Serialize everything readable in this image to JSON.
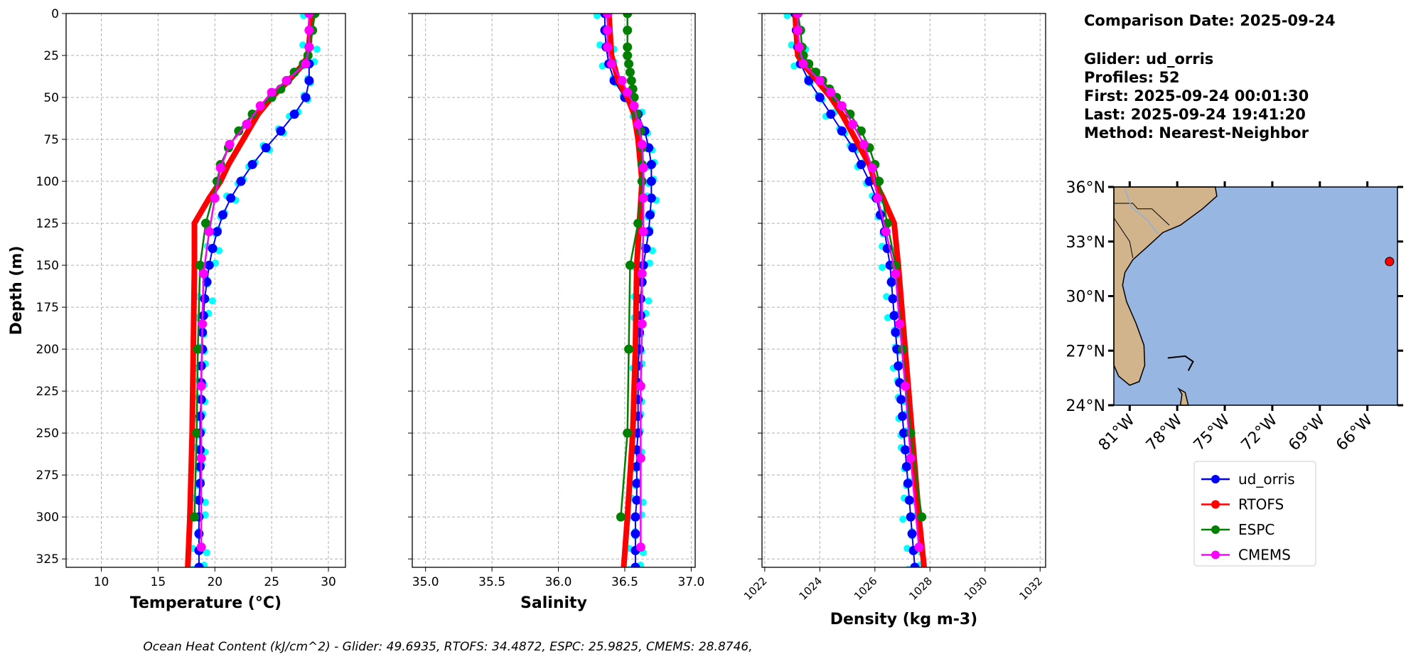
{
  "info": {
    "comparison_date": "Comparison Date: 2025-09-24",
    "glider": "Glider: ud_orris",
    "profiles": "Profiles: 52",
    "first": "First: 2025-09-24 00:01:30",
    "last": "Last: 2025-09-24 19:41:20",
    "method": "Method: Nearest-Neighbor"
  },
  "footer": "Ocean Heat Content (kJ/cm^2) - Glider: 49.6935,  RTOFS: 34.4872,  ESPC: 25.9825,  CMEMS: 28.8746,",
  "colors": {
    "ud_orris": "#0000ff",
    "glider_raw": "#00ffff",
    "RTOFS": "#ff0000",
    "ESPC": "#008000",
    "CMEMS": "#ff00ff",
    "land": "#d2b48c",
    "ocean": "#97b6e1"
  },
  "legend": [
    "ud_orris",
    "RTOFS",
    "ESPC",
    "CMEMS"
  ],
  "chart_data": [
    {
      "type": "line",
      "id": "temperature",
      "xlabel": "Temperature (°C)",
      "ylabel": "Depth (m)",
      "xlim": [
        6.9,
        31.5
      ],
      "ylim": [
        330,
        0
      ],
      "grid": true,
      "xticks": [
        "10",
        "15",
        "20",
        "25",
        "30"
      ],
      "yticks": [
        "0",
        "25",
        "50",
        "75",
        "100",
        "125",
        "150",
        "175",
        "200",
        "225",
        "250",
        "275",
        "300",
        "325"
      ],
      "series": [
        {
          "name": "ud_orris",
          "depth": [
            0,
            10,
            20,
            30,
            40,
            50,
            60,
            70,
            80,
            90,
            100,
            110,
            120,
            130,
            140,
            150,
            160,
            170,
            180,
            190,
            200,
            210,
            220,
            230,
            240,
            250,
            260,
            270,
            280,
            290,
            300,
            310,
            320,
            330
          ],
          "values": [
            28.5,
            28.4,
            28.3,
            28.3,
            28.3,
            28.0,
            27.0,
            25.8,
            24.5,
            23.3,
            22.3,
            21.4,
            20.7,
            20.2,
            19.8,
            19.5,
            19.3,
            19.1,
            19.0,
            18.9,
            18.9,
            18.8,
            18.8,
            18.8,
            18.7,
            18.7,
            18.7,
            18.7,
            18.7,
            18.6,
            18.6,
            18.6,
            18.6,
            18.6
          ]
        },
        {
          "name": "RTOFS",
          "depth": [
            0,
            10,
            25,
            30,
            40,
            50,
            60,
            75,
            90,
            100,
            110,
            125,
            150,
            200,
            250,
            300,
            332
          ],
          "values": [
            28.5,
            28.4,
            28.2,
            27.8,
            26.5,
            25.0,
            23.8,
            22.5,
            21.2,
            20.5,
            19.5,
            18.2,
            18.2,
            18.1,
            18.0,
            17.8,
            17.6
          ]
        },
        {
          "name": "ESPC",
          "depth": [
            0,
            10,
            20,
            25,
            30,
            35,
            40,
            45,
            50,
            60,
            70,
            80,
            90,
            100,
            125,
            150,
            200,
            250,
            300
          ],
          "values": [
            28.8,
            28.6,
            28.3,
            28.2,
            27.8,
            27.0,
            26.4,
            25.8,
            25.0,
            23.3,
            22.1,
            21.2,
            20.5,
            20.2,
            19.2,
            18.7,
            18.5,
            18.4,
            18.2
          ]
        },
        {
          "name": "CMEMS",
          "depth": [
            0,
            10,
            20,
            30,
            40,
            47,
            55,
            66,
            78,
            92,
            110,
            130,
            155,
            185,
            222,
            265,
            318
          ],
          "values": [
            28.3,
            28.3,
            28.3,
            28.0,
            26.3,
            25.0,
            24.0,
            22.8,
            21.3,
            20.5,
            20.0,
            19.5,
            19.0,
            18.9,
            18.8,
            18.8,
            18.8
          ]
        }
      ]
    },
    {
      "type": "line",
      "id": "salinity",
      "xlabel": "Salinity",
      "ylabel": "",
      "xlim": [
        34.9,
        37.03
      ],
      "ylim": [
        330,
        0
      ],
      "grid": true,
      "xticks": [
        "35.0",
        "35.5",
        "36.0",
        "36.5",
        "37.0"
      ],
      "series": [
        {
          "name": "ud_orris",
          "depth": [
            0,
            10,
            20,
            30,
            40,
            50,
            60,
            70,
            80,
            90,
            100,
            110,
            120,
            130,
            140,
            150,
            160,
            170,
            180,
            190,
            200,
            210,
            220,
            230,
            240,
            250,
            260,
            270,
            280,
            290,
            300,
            310,
            320,
            330
          ],
          "values": [
            36.35,
            36.35,
            36.36,
            36.38,
            36.42,
            36.5,
            36.6,
            36.65,
            36.68,
            36.7,
            36.7,
            36.7,
            36.69,
            36.68,
            36.66,
            36.64,
            36.63,
            36.62,
            36.62,
            36.61,
            36.61,
            36.6,
            36.6,
            36.6,
            36.6,
            36.6,
            36.59,
            36.59,
            36.59,
            36.59,
            36.58,
            36.58,
            36.58,
            36.58
          ]
        },
        {
          "name": "RTOFS",
          "depth": [
            0,
            25,
            40,
            50,
            60,
            75,
            100,
            125,
            150,
            200,
            250,
            300,
            332
          ],
          "values": [
            36.38,
            36.4,
            36.45,
            36.52,
            36.57,
            36.6,
            36.63,
            36.61,
            36.59,
            36.58,
            36.56,
            36.52,
            36.49
          ]
        },
        {
          "name": "ESPC",
          "depth": [
            0,
            10,
            20,
            25,
            30,
            35,
            40,
            45,
            50,
            60,
            70,
            80,
            90,
            100,
            125,
            150,
            200,
            250,
            300
          ],
          "values": [
            36.52,
            36.52,
            36.52,
            36.52,
            36.53,
            36.54,
            36.55,
            36.56,
            36.57,
            36.59,
            36.62,
            36.63,
            36.63,
            36.63,
            36.6,
            36.54,
            36.53,
            36.52,
            36.47
          ]
        },
        {
          "name": "CMEMS",
          "depth": [
            0,
            10,
            20,
            30,
            40,
            47,
            55,
            66,
            78,
            92,
            110,
            130,
            155,
            185,
            222,
            265,
            318
          ],
          "values": [
            36.37,
            36.37,
            36.37,
            36.4,
            36.48,
            36.52,
            36.57,
            36.6,
            36.63,
            36.64,
            36.64,
            36.64,
            36.63,
            36.63,
            36.62,
            36.62,
            36.62
          ]
        }
      ]
    },
    {
      "type": "line",
      "id": "density",
      "xlabel": "Density (kg m-3)",
      "ylabel": "",
      "xlim": [
        1021.9,
        1032.2
      ],
      "ylim": [
        330,
        0
      ],
      "grid": true,
      "xticks": [
        "1022",
        "1024",
        "1026",
        "1028",
        "1030",
        "1032"
      ],
      "series": [
        {
          "name": "ud_orris",
          "depth": [
            0,
            10,
            20,
            30,
            40,
            50,
            60,
            70,
            80,
            90,
            100,
            110,
            120,
            130,
            140,
            150,
            160,
            170,
            180,
            190,
            200,
            210,
            220,
            230,
            240,
            250,
            260,
            270,
            280,
            290,
            300,
            310,
            320,
            330
          ],
          "values": [
            1023.1,
            1023.15,
            1023.2,
            1023.3,
            1023.6,
            1024.0,
            1024.4,
            1024.8,
            1025.2,
            1025.5,
            1025.8,
            1026.05,
            1026.2,
            1026.35,
            1026.45,
            1026.55,
            1026.6,
            1026.65,
            1026.7,
            1026.75,
            1026.8,
            1026.85,
            1026.9,
            1026.95,
            1027.0,
            1027.05,
            1027.1,
            1027.15,
            1027.2,
            1027.25,
            1027.3,
            1027.35,
            1027.4,
            1027.45
          ]
        },
        {
          "name": "RTOFS",
          "depth": [
            0,
            25,
            30,
            40,
            50,
            60,
            75,
            90,
            100,
            110,
            125,
            150,
            200,
            250,
            300,
            332
          ],
          "values": [
            1023.1,
            1023.2,
            1023.4,
            1023.9,
            1024.4,
            1024.8,
            1025.3,
            1025.8,
            1026.0,
            1026.3,
            1026.7,
            1026.85,
            1027.1,
            1027.35,
            1027.6,
            1027.8
          ]
        },
        {
          "name": "ESPC",
          "depth": [
            0,
            10,
            20,
            25,
            30,
            35,
            40,
            45,
            50,
            60,
            70,
            80,
            90,
            100,
            125,
            150,
            200,
            250,
            300
          ],
          "values": [
            1023.2,
            1023.3,
            1023.35,
            1023.4,
            1023.6,
            1023.85,
            1024.1,
            1024.35,
            1024.6,
            1025.1,
            1025.5,
            1025.8,
            1026.0,
            1026.15,
            1026.45,
            1026.75,
            1027.0,
            1027.3,
            1027.7
          ]
        },
        {
          "name": "CMEMS",
          "depth": [
            0,
            10,
            20,
            30,
            40,
            47,
            55,
            66,
            78,
            92,
            110,
            130,
            155,
            185,
            222,
            265,
            318
          ],
          "values": [
            1023.2,
            1023.2,
            1023.25,
            1023.4,
            1024.0,
            1024.4,
            1024.8,
            1025.2,
            1025.6,
            1025.9,
            1026.1,
            1026.4,
            1026.75,
            1026.9,
            1027.1,
            1027.3,
            1027.6
          ]
        }
      ]
    }
  ],
  "map": {
    "lon_range": [
      -82,
      -64.1
    ],
    "lat_range": [
      24,
      36
    ],
    "lat_ticks": [
      "24°N",
      "27°N",
      "30°N",
      "33°N",
      "36°N"
    ],
    "lon_ticks": [
      "81°W",
      "78°W",
      "75°W",
      "72°W",
      "69°W",
      "66°W"
    ],
    "glider_position": [
      -64.6,
      31.9
    ]
  }
}
